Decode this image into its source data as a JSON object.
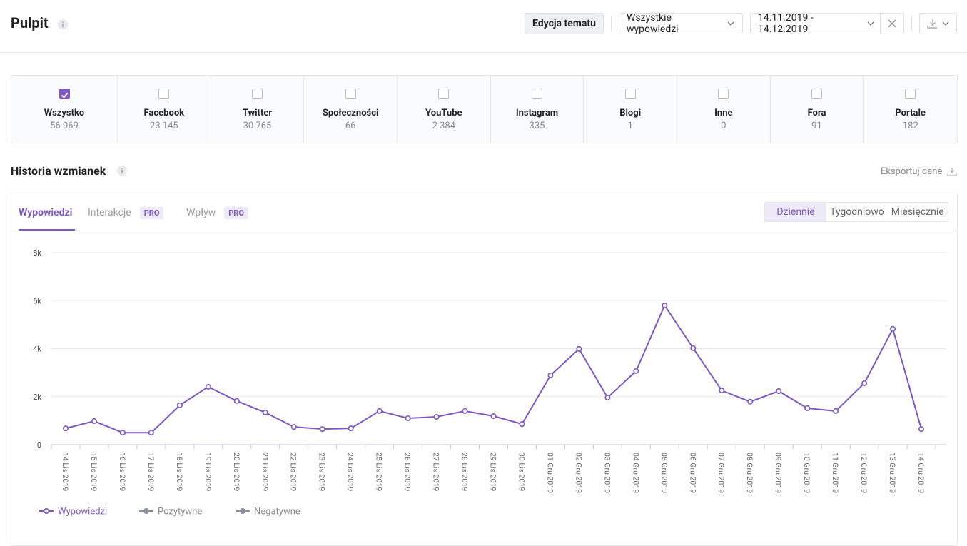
{
  "header": {
    "title": "Pulpit",
    "edit_button": "Edycja tematu",
    "filter": "Wszystkie wypowiedzi",
    "date_range": "14.11.2019 - 14.12.2019"
  },
  "sources": [
    {
      "name": "Wszystko",
      "count": "56 969",
      "checked": true
    },
    {
      "name": "Facebook",
      "count": "23 145",
      "checked": false
    },
    {
      "name": "Twitter",
      "count": "30 765",
      "checked": false
    },
    {
      "name": "Społeczności",
      "count": "66",
      "checked": false
    },
    {
      "name": "YouTube",
      "count": "2 384",
      "checked": false
    },
    {
      "name": "Instagram",
      "count": "335",
      "checked": false
    },
    {
      "name": "Blogi",
      "count": "1",
      "checked": false
    },
    {
      "name": "Inne",
      "count": "0",
      "checked": false
    },
    {
      "name": "Fora",
      "count": "91",
      "checked": false
    },
    {
      "name": "Portale",
      "count": "182",
      "checked": false
    }
  ],
  "section": {
    "title": "Historia wzmianek",
    "export": "Eksportuj dane"
  },
  "tabs": [
    {
      "label": "Wypowiedzi",
      "active": true
    },
    {
      "label": "Interakcje",
      "badge": "PRO"
    },
    {
      "label": "Wpływ",
      "badge": "PRO"
    }
  ],
  "periods": [
    {
      "label": "Dziennie",
      "active": true
    },
    {
      "label": "Tygodniowo"
    },
    {
      "label": "Miesięcznie"
    }
  ],
  "chart_data": {
    "type": "line",
    "categories": [
      "14 Lis 2019",
      "15 Lis 2019",
      "16 Lis 2019",
      "17 Lis 2019",
      "18 Lis 2019",
      "19 Lis 2019",
      "20 Lis 2019",
      "21 Lis 2019",
      "22 Lis 2019",
      "23 Lis 2019",
      "24 Lis 2019",
      "25 Lis 2019",
      "26 Lis 2019",
      "27 Lis 2019",
      "28 Lis 2019",
      "29 Lis 2019",
      "30 Lis 2019",
      "01 Gru 2019",
      "02 Gru 2019",
      "03 Gru 2019",
      "04 Gru 2019",
      "05 Gru 2019",
      "06 Gru 2019",
      "07 Gru 2019",
      "08 Gru 2019",
      "09 Gru 2019",
      "10 Gru 2019",
      "11 Gru 2019",
      "12 Gru 2019",
      "13 Gru 2019",
      "14 Gru 2019"
    ],
    "series": [
      {
        "name": "Wypowiedzi",
        "color": "#7e57c2",
        "values": [
          680,
          980,
          500,
          500,
          1640,
          2410,
          1820,
          1340,
          740,
          650,
          680,
          1400,
          1100,
          1160,
          1400,
          1190,
          860,
          2890,
          3990,
          1960,
          3070,
          5800,
          4020,
          2260,
          1790,
          2230,
          1520,
          1400,
          2560,
          4820,
          650
        ]
      },
      {
        "name": "Pozytywne",
        "color": "#8a919b"
      },
      {
        "name": "Negatywne",
        "color": "#8a919b"
      }
    ],
    "ylim": [
      0,
      8000
    ],
    "yticks": [
      0,
      {
        "value": 2000,
        "label": "2k"
      },
      {
        "value": 4000,
        "label": "4k"
      },
      {
        "value": 6000,
        "label": "6k"
      },
      {
        "value": 8000,
        "label": "8k"
      }
    ],
    "grid": true
  }
}
